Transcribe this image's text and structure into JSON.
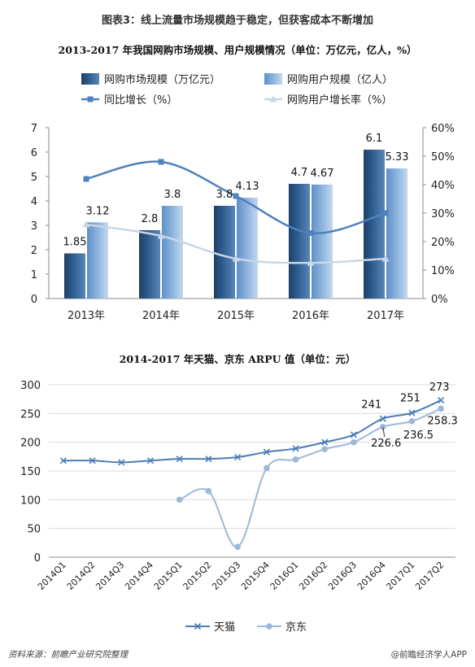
{
  "header": {
    "title": "图表3：线上流量市场规模趋于稳定，但获客成本不断增加"
  },
  "footer": {
    "source": "资料来源：前瞻产业研究院整理",
    "brand": "@前瞻经济学人APP"
  },
  "colors": {
    "bar_market": "#2f5f91",
    "bar_users": "#8eb4de",
    "line_growth": "#4f81bd",
    "line_user_growth": "#c9d6e6",
    "tmall": "#4a7db5",
    "jd": "#9db8d9"
  },
  "chart_data": [
    {
      "type": "bar",
      "title": "2013-2017 年我国网购市场规模、用户规模情况（单位：万亿元，亿人，%）",
      "categories": [
        "2013年",
        "2014年",
        "2015年",
        "2016年",
        "2017年"
      ],
      "series": [
        {
          "name": "网购市场规模（万亿元）",
          "axis": "left",
          "type": "bar",
          "values": [
            1.85,
            2.8,
            3.8,
            4.7,
            6.1
          ]
        },
        {
          "name": "网购用户规模（亿人）",
          "axis": "left",
          "type": "bar",
          "values": [
            3.12,
            3.8,
            4.13,
            4.67,
            5.33
          ]
        },
        {
          "name": "同比增长（%）",
          "axis": "right",
          "type": "line",
          "values": [
            42,
            48,
            36,
            23,
            30
          ]
        },
        {
          "name": "网购用户增长率（%）",
          "axis": "right",
          "type": "line",
          "values": [
            26,
            22,
            14,
            12.5,
            14
          ]
        }
      ],
      "data_labels": {
        "网购市场规模（万亿元）": [
          "1.85",
          "2.8",
          "3.8",
          "4.7",
          "6.1"
        ],
        "网购用户规模（亿人）": [
          "3.12",
          "3.8",
          "4.13",
          "4.67",
          "5.33"
        ]
      },
      "y_left": {
        "min": 0,
        "max": 7,
        "ticks": [
          "0",
          "1",
          "2",
          "3",
          "4",
          "5",
          "6",
          "7"
        ]
      },
      "y_right": {
        "min": 0,
        "max": 60,
        "ticks": [
          "0%",
          "10%",
          "20%",
          "30%",
          "40%",
          "50%",
          "60%"
        ]
      },
      "legend_position": "top",
      "grid": false
    },
    {
      "type": "line",
      "title": "2014-2017 年天猫、京东 ARPU 值（单位：元）",
      "categories": [
        "2014Q1",
        "2014Q2",
        "2014Q3",
        "2014Q4",
        "2015Q1",
        "2015Q2",
        "2015Q3",
        "2015Q4",
        "2016Q1",
        "2016Q2",
        "2016Q3",
        "2016Q4",
        "2017Q1",
        "2017Q2"
      ],
      "series": [
        {
          "name": "天猫",
          "values": [
            168,
            168,
            165,
            168,
            171,
            171,
            174,
            183,
            189,
            200,
            213,
            241,
            251,
            273
          ]
        },
        {
          "name": "京东",
          "values": [
            null,
            null,
            null,
            null,
            100,
            115,
            18,
            155,
            170,
            188,
            200,
            226.6,
            236.5,
            258.3
          ]
        }
      ],
      "annotations": [
        {
          "series": "天猫",
          "category": "2016Q4",
          "label": "241"
        },
        {
          "series": "天猫",
          "category": "2017Q1",
          "label": "251"
        },
        {
          "series": "天猫",
          "category": "2017Q2",
          "label": "273"
        },
        {
          "series": "京东",
          "category": "2016Q4",
          "label": "226.6"
        },
        {
          "series": "京东",
          "category": "2017Q1",
          "label": "236.5"
        },
        {
          "series": "京东",
          "category": "2017Q2",
          "label": "258.3"
        }
      ],
      "y": {
        "min": 0,
        "max": 300,
        "ticks": [
          "0",
          "50",
          "100",
          "150",
          "200",
          "250",
          "300"
        ]
      },
      "legend_position": "bottom",
      "grid": true
    }
  ]
}
